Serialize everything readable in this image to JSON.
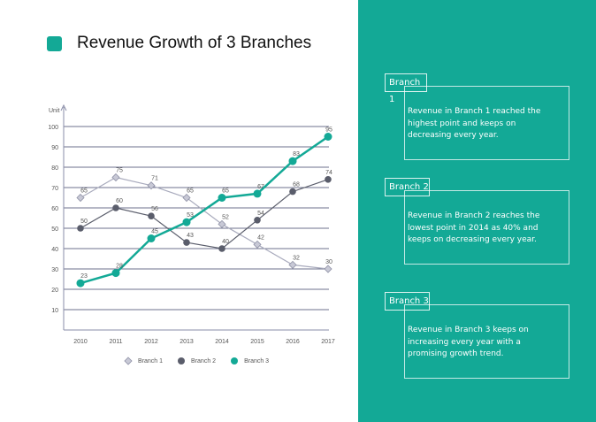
{
  "title": "Revenue Growth of 3 Branches",
  "colors": {
    "accent": "#13a996",
    "branch1": "#a9abbd",
    "branch2": "#5a5d6b",
    "branch3": "#13a996",
    "grid": "#3e4366"
  },
  "chart_data": {
    "type": "line",
    "title": "Revenue Growth of 3 Branches",
    "ylabel": "Unit",
    "xlabel": "",
    "x": [
      "2010",
      "2011",
      "2012",
      "2013",
      "2014",
      "2015",
      "2016",
      "2017"
    ],
    "ylim": [
      0,
      100
    ],
    "yticks": [
      "10",
      "20",
      "30",
      "40",
      "50",
      "60",
      "70",
      "80",
      "90",
      "100"
    ],
    "grid": true,
    "legend": "bottom",
    "series": [
      {
        "name": "Branch 1",
        "values": [
          65,
          75,
          71,
          65,
          52,
          42,
          32,
          30
        ],
        "marker": "diamond"
      },
      {
        "name": "Branch 2",
        "values": [
          50,
          60,
          56,
          43,
          40,
          54,
          68,
          74
        ],
        "marker": "circle"
      },
      {
        "name": "Branch 3",
        "values": [
          23,
          28,
          45,
          53,
          65,
          67,
          83,
          95
        ],
        "marker": "circle"
      }
    ]
  },
  "notes": [
    {
      "label": "Branch 1",
      "text": "Revenue in Branch 1 reached the highest point and keeps on decreasing every year."
    },
    {
      "label": "Branch 2",
      "text": "Revenue in Branch 2 reaches the lowest point in 2014 as 40% and keeps on decreasing every year."
    },
    {
      "label": "Branch 3",
      "text": "Revenue in Branch 3 keeps on increasing every year with a promising growth trend."
    }
  ]
}
